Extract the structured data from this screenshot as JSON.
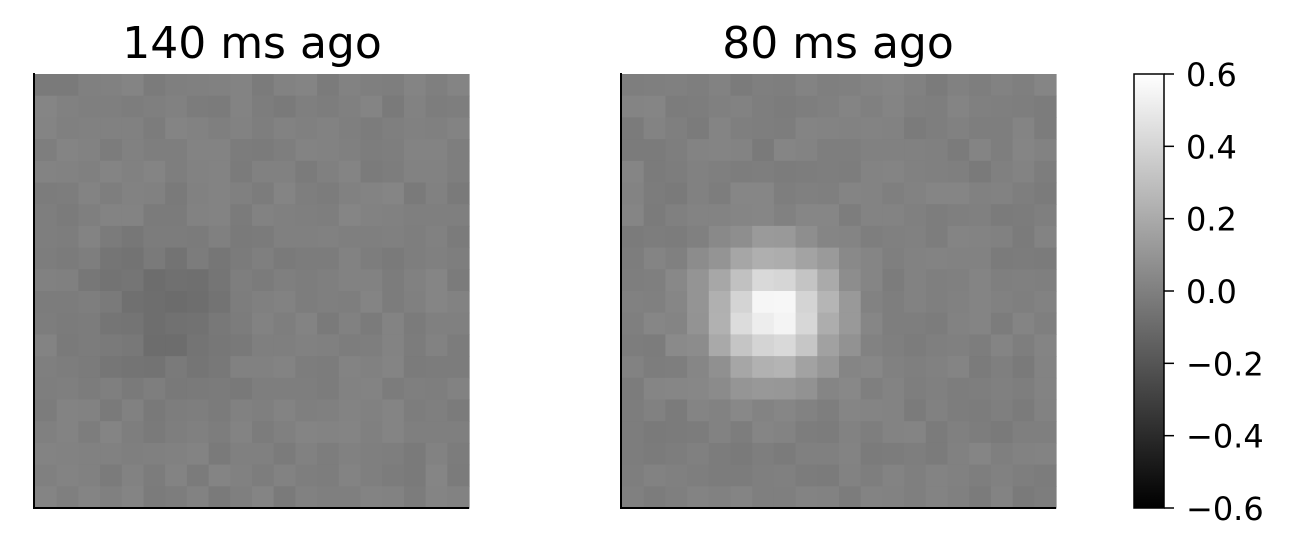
{
  "chart_data": [
    {
      "type": "heatmap",
      "title": "140 ms ago",
      "grid_size": [
        20,
        20
      ],
      "colormap": "gray",
      "vmin": -0.6,
      "vmax": 0.6,
      "feature": {
        "kind": "negative-blob",
        "center_row": 10.5,
        "center_col": 5.5,
        "peak": -0.09,
        "sigma": 2.2
      },
      "noise_amplitude": 0.025
    },
    {
      "type": "heatmap",
      "title": "80 ms ago",
      "grid_size": [
        20,
        20
      ],
      "colormap": "gray",
      "vmin": -0.6,
      "vmax": 0.6,
      "feature": {
        "kind": "positive-blob",
        "center_row": 10.5,
        "center_col": 6.5,
        "peak": 0.58,
        "sigma": 1.9
      },
      "noise_amplitude": 0.025
    }
  ],
  "colorbar": {
    "min": -0.6,
    "max": 0.6,
    "ticks": [
      "0.6",
      "0.4",
      "0.2",
      "0.0",
      "−0.2",
      "−0.4",
      "−0.6"
    ],
    "tick_values": [
      0.6,
      0.4,
      0.2,
      0.0,
      -0.2,
      -0.4,
      -0.6
    ]
  }
}
